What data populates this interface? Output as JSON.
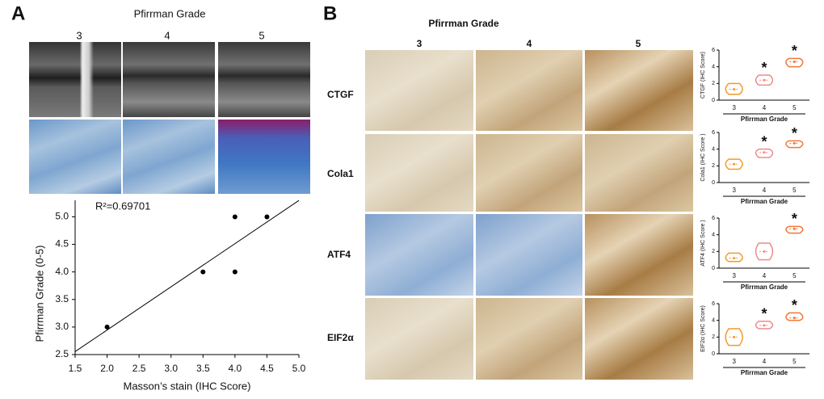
{
  "panel_a": {
    "label": "A",
    "title": "Pfirrman Grade",
    "grades": [
      "3",
      "4",
      "5"
    ]
  },
  "panel_b": {
    "label": "B",
    "title": "Pfirrman Grade",
    "grades": [
      "3",
      "4",
      "5"
    ],
    "rows": [
      "CTGF",
      "Cola1",
      "ATF4",
      "EIF2α"
    ]
  },
  "chart_data": [
    {
      "type": "scatter",
      "x": [
        2,
        3.5,
        4,
        4,
        4.5
      ],
      "values": [
        3,
        4,
        4,
        5,
        5
      ],
      "color": "#000000",
      "fit_line": true,
      "annotation": "R²=0.69701",
      "xlabel": "Masson’s stain (IHC Score)",
      "ylabel": "Pfirrman Grade (0-5)",
      "xlim": [
        1.5,
        5.0
      ],
      "ylim": [
        2.5,
        5.3
      ],
      "xticks": [
        {
          "value": 1.5,
          "label": "1.5"
        },
        {
          "value": 2,
          "label": "2.0"
        },
        {
          "value": 2.5,
          "label": "2.5"
        },
        {
          "value": 3,
          "label": "3.0"
        },
        {
          "value": 3.5,
          "label": "3.5"
        },
        {
          "value": 4,
          "label": "4.0"
        },
        {
          "value": 4.5,
          "label": "4.5"
        },
        {
          "value": 5,
          "label": "5.0"
        }
      ],
      "yticks": [
        {
          "value": 2.5,
          "label": "2.5"
        },
        {
          "value": 3,
          "label": "3.0"
        },
        {
          "value": 3.5,
          "label": "3.5"
        },
        {
          "value": 4,
          "label": "4.0"
        },
        {
          "value": 4.5,
          "label": "4.5"
        },
        {
          "value": 5,
          "label": "5.0"
        }
      ]
    },
    {
      "type": "violin",
      "ylabel": "CTGF (IHC Score)",
      "xlabel": "Pfirrman Grade",
      "categories": [
        "3",
        "4",
        "5"
      ],
      "min": [
        0.7,
        1.8,
        4.0
      ],
      "median": [
        1.3,
        2.4,
        4.6
      ],
      "max": [
        2.0,
        3.0,
        5.0
      ],
      "annotations": [
        null,
        "*",
        "*"
      ],
      "colors": [
        "#f39a2c",
        "#f08a8a",
        "#f0783a"
      ],
      "ylim": [
        0,
        6
      ],
      "yticks": [
        0,
        2,
        4,
        6
      ]
    },
    {
      "type": "violin",
      "ylabel": "Cola1 (IHC Score )",
      "xlabel": "Pfirrman Grade",
      "categories": [
        "3",
        "4",
        "5"
      ],
      "min": [
        1.6,
        3.0,
        4.2
      ],
      "median": [
        2.2,
        3.6,
        4.7
      ],
      "max": [
        2.8,
        4.0,
        5.0
      ],
      "annotations": [
        null,
        "*",
        "*"
      ],
      "colors": [
        "#f39a2c",
        "#f08a8a",
        "#f0783a"
      ],
      "ylim": [
        0,
        6
      ],
      "yticks": [
        0,
        2,
        4,
        6
      ]
    },
    {
      "type": "violin",
      "ylabel": "ATF4 (IHC Score )",
      "xlabel": "Pfirrman Grade",
      "categories": [
        "3",
        "4",
        "5"
      ],
      "min": [
        0.8,
        1.0,
        4.2
      ],
      "median": [
        1.2,
        2.0,
        4.7
      ],
      "max": [
        1.8,
        3.0,
        5.0
      ],
      "annotations": [
        null,
        null,
        "*"
      ],
      "colors": [
        "#f39a2c",
        "#f08a8a",
        "#f0783a"
      ],
      "ylim": [
        0,
        6
      ],
      "yticks": [
        0,
        2,
        4,
        6
      ]
    },
    {
      "type": "violin",
      "ylabel": "EIF2α (IHC Score)",
      "xlabel": "Pfirrman Grade",
      "categories": [
        "3",
        "4",
        "5"
      ],
      "min": [
        1.0,
        3.0,
        4.0
      ],
      "median": [
        2.0,
        3.4,
        4.3
      ],
      "max": [
        3.0,
        3.9,
        4.9
      ],
      "annotations": [
        null,
        "*",
        "*"
      ],
      "colors": [
        "#f39a2c",
        "#f08a8a",
        "#f0783a"
      ],
      "ylim": [
        0,
        6
      ],
      "yticks": [
        0,
        2,
        4,
        6
      ]
    }
  ]
}
